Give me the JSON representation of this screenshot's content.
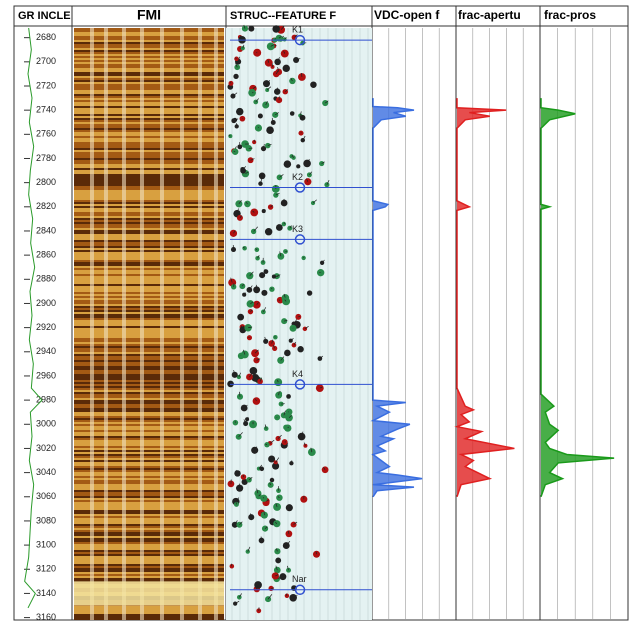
{
  "chart_data": {
    "type": "well-log",
    "tracks": [
      "FMI",
      "STRUC--FEATURE F"
    ],
    "ylim": [
      2672,
      3162
    ],
    "yticks": [
      2680,
      2700,
      2720,
      2740,
      2760,
      2780,
      2800,
      2820,
      2840,
      2860,
      2880,
      2900,
      2920,
      2940,
      2960,
      2980,
      3000,
      3020,
      3040,
      3060,
      3080,
      3100,
      3120,
      3140,
      3160
    ],
    "markers": [
      {
        "label": "K1",
        "depth": 2682
      },
      {
        "label": "K2",
        "depth": 2804
      },
      {
        "label": "K3",
        "depth": 2847
      },
      {
        "label": "K4",
        "depth": 2967
      },
      {
        "label": "Nar",
        "depth": 3137
      }
    ],
    "series": [
      {
        "name": "GR INCLE",
        "color": "#2a9a2a",
        "xlim": [
          0,
          150
        ],
        "depth": [
          2672,
          2690,
          2710,
          2730,
          2750,
          2770,
          2790,
          2810,
          2830,
          2850,
          2870,
          2890,
          2910,
          2930,
          2950,
          2970,
          2980,
          2990,
          3010,
          3030,
          3050,
          3070,
          3090,
          3110,
          3130,
          3140,
          3152
        ],
        "values": [
          20,
          28,
          18,
          30,
          22,
          35,
          25,
          20,
          32,
          26,
          38,
          24,
          30,
          22,
          34,
          28,
          60,
          25,
          30,
          22,
          35,
          28,
          24,
          20,
          8,
          40,
          18
        ]
      },
      {
        "name": "VDC-open f",
        "color": "#3a6ee0",
        "xlim": [
          0,
          100
        ],
        "depth": [
          2730,
          2737,
          2738,
          2740,
          2742,
          2745,
          2748,
          2755,
          2815,
          2818,
          2820,
          2823,
          2970,
          2980,
          2982,
          2985,
          2990,
          2997,
          3000,
          3004,
          3010,
          3012,
          3018,
          3022,
          3025,
          3030,
          3035,
          3040,
          3042,
          3045,
          3050,
          3052,
          3055,
          3060
        ],
        "values": [
          0,
          0,
          30,
          50,
          25,
          40,
          10,
          0,
          0,
          18,
          15,
          0,
          0,
          0,
          40,
          5,
          20,
          0,
          45,
          30,
          10,
          25,
          5,
          15,
          0,
          10,
          20,
          5,
          30,
          60,
          0,
          50,
          5,
          0
        ]
      },
      {
        "name": "frac-apertu",
        "color": "#e02020",
        "xlim": [
          0,
          100
        ],
        "depth": [
          2730,
          2738,
          2740,
          2742,
          2745,
          2748,
          2755,
          2815,
          2820,
          2823,
          2970,
          2985,
          2988,
          2992,
          2998,
          3002,
          3006,
          3012,
          3020,
          3025,
          3030,
          3035,
          3040,
          3045,
          3050,
          3060
        ],
        "values": [
          0,
          0,
          60,
          15,
          40,
          10,
          0,
          0,
          15,
          0,
          0,
          10,
          20,
          5,
          15,
          0,
          30,
          10,
          70,
          5,
          20,
          10,
          25,
          40,
          5,
          0
        ]
      },
      {
        "name": "frac-pros",
        "color": "#1a9a1a",
        "xlim": [
          0,
          100
        ],
        "depth": [
          2730,
          2738,
          2740,
          2743,
          2748,
          2755,
          2818,
          2820,
          2822,
          2975,
          2985,
          2990,
          3000,
          3005,
          3015,
          3020,
          3025,
          3028,
          3032,
          3040,
          3045,
          3050,
          3060
        ],
        "values": [
          0,
          0,
          20,
          40,
          10,
          0,
          0,
          10,
          0,
          0,
          15,
          5,
          10,
          20,
          5,
          10,
          30,
          85,
          20,
          10,
          25,
          5,
          0
        ]
      }
    ]
  }
}
